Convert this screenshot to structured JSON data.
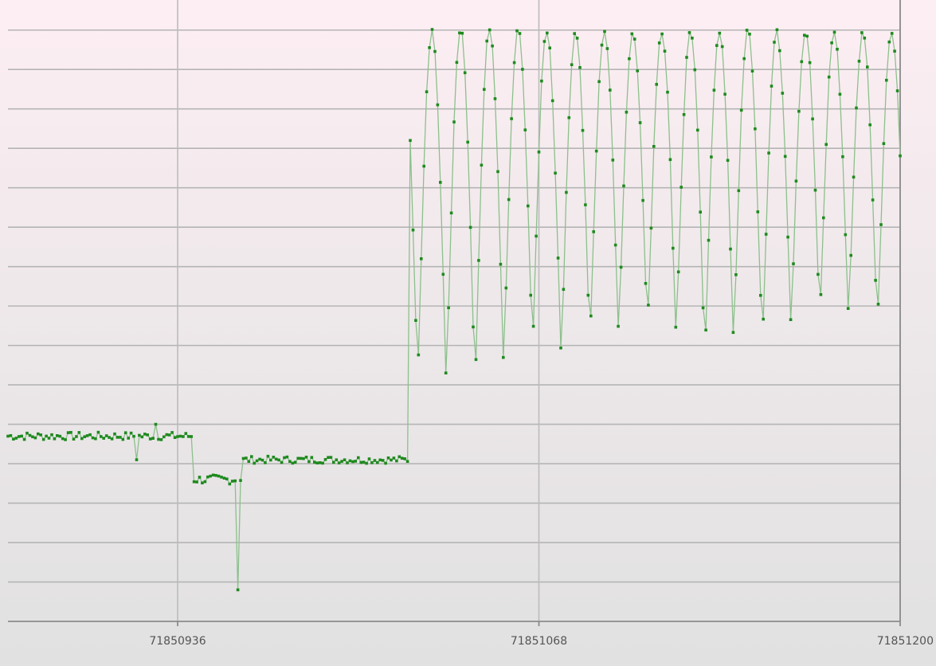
{
  "chart_data": {
    "type": "line",
    "title": "",
    "xlabel": "",
    "ylabel": "",
    "xlim": [
      71850874,
      71851200
    ],
    "ylim": [
      0,
      15.5
    ],
    "x_ticks": [
      71850936,
      71851068,
      71851200
    ],
    "x_tick_labels": [
      "71850936",
      "71851068",
      "71851200"
    ],
    "y_gridlines": [
      1,
      2,
      3,
      4,
      5,
      6,
      7,
      8,
      9,
      10,
      11,
      12,
      13,
      14,
      15
    ],
    "y_tick_labels_visible": false,
    "grid": true,
    "legend": "none",
    "marker": "dot",
    "colors": {
      "line": "#8cc08c",
      "marker": "#1e8a1e"
    },
    "segments": [
      {
        "x": [
          71850874,
          71850942
        ],
        "level": 4.7,
        "amplitude": 0.1
      },
      {
        "x": [
          71850942,
          71850960
        ],
        "level": 3.6,
        "amplitude": 0.12
      },
      {
        "x": [
          71850960,
          71851021
        ],
        "level": 4.1,
        "amplitude": 0.09
      }
    ],
    "spikes": [
      {
        "x": 71850928,
        "y": 5.0
      },
      {
        "x": 71850921,
        "y": 4.1
      },
      {
        "x": 71850958,
        "y": 0.8
      }
    ],
    "oscillation": {
      "x_start": 71851021,
      "x_end": 71851200,
      "period": 10.5,
      "peak": 15.0,
      "troughs": [
        6.1,
        6.0,
        5.9,
        6.5,
        6.9,
        6.7,
        7.0,
        7.3,
        7.3,
        7.2,
        6.6,
        7.1,
        6.9,
        7.4,
        7.6,
        7.6,
        7.4,
        7.6
      ]
    }
  }
}
